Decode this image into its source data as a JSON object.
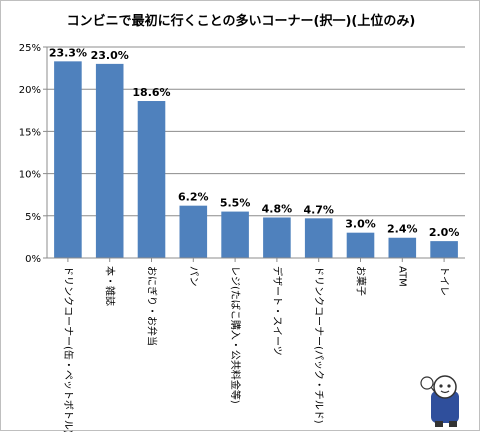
{
  "chart_data": {
    "type": "bar",
    "title": "コンビニで最初に行くことの多いコーナー(択一)(上位のみ)",
    "categories": [
      "ドリンクコーナー(缶・ペットボトル)",
      "本・雑誌",
      "おにぎり・お弁当",
      "パン",
      "レジ(たばこ購入・公共料金等)",
      "デザート・スイーツ",
      "ドリンクコーナー(パック・チルド)",
      "お菓子",
      "ATM",
      "トイレ"
    ],
    "values": [
      23.3,
      23.0,
      18.6,
      6.2,
      5.5,
      4.8,
      4.7,
      3.0,
      2.4,
      2.0
    ],
    "value_labels": [
      "23.3%",
      "23.0%",
      "18.6%",
      "6.2%",
      "5.5%",
      "4.8%",
      "4.7%",
      "3.0%",
      "2.4%",
      "2.0%"
    ],
    "ylim": [
      0,
      25
    ],
    "yticks": [
      0,
      5,
      10,
      15,
      20,
      25
    ],
    "ytick_labels": [
      "0%",
      "5%",
      "10%",
      "15%",
      "20%",
      "25%"
    ],
    "grid": true,
    "bar_color": "#4f81bd",
    "xlabel": "",
    "ylabel": ""
  },
  "mascot": "cartoon-mascot-icon"
}
